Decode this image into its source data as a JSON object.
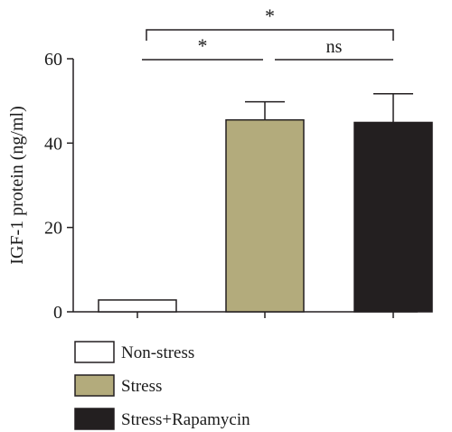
{
  "chart_data": {
    "type": "bar",
    "categories": [
      "Non-stress",
      "Stress",
      "Stress+Rapamycin"
    ],
    "values": [
      2.8,
      45.5,
      44.9
    ],
    "errors": [
      0,
      4.3,
      6.8
    ],
    "colors": [
      "#ffffff",
      "#b3ab7c",
      "#231f20"
    ],
    "ylabel": "IGF-1 protein (ng/ml)",
    "ylim": [
      0,
      60
    ],
    "yticks": [
      0,
      20,
      40,
      60
    ],
    "grid": false,
    "legend": {
      "placement": "bottom-left",
      "entries": [
        "Non-stress",
        "Stress",
        "Stress+Rapamycin"
      ]
    },
    "annotations": [
      {
        "from": 0,
        "to": 1,
        "label": "*",
        "level": 1
      },
      {
        "from": 1,
        "to": 2,
        "label": "ns",
        "level": 1
      },
      {
        "from": 0,
        "to": 2,
        "label": "*",
        "level": 2
      }
    ]
  }
}
